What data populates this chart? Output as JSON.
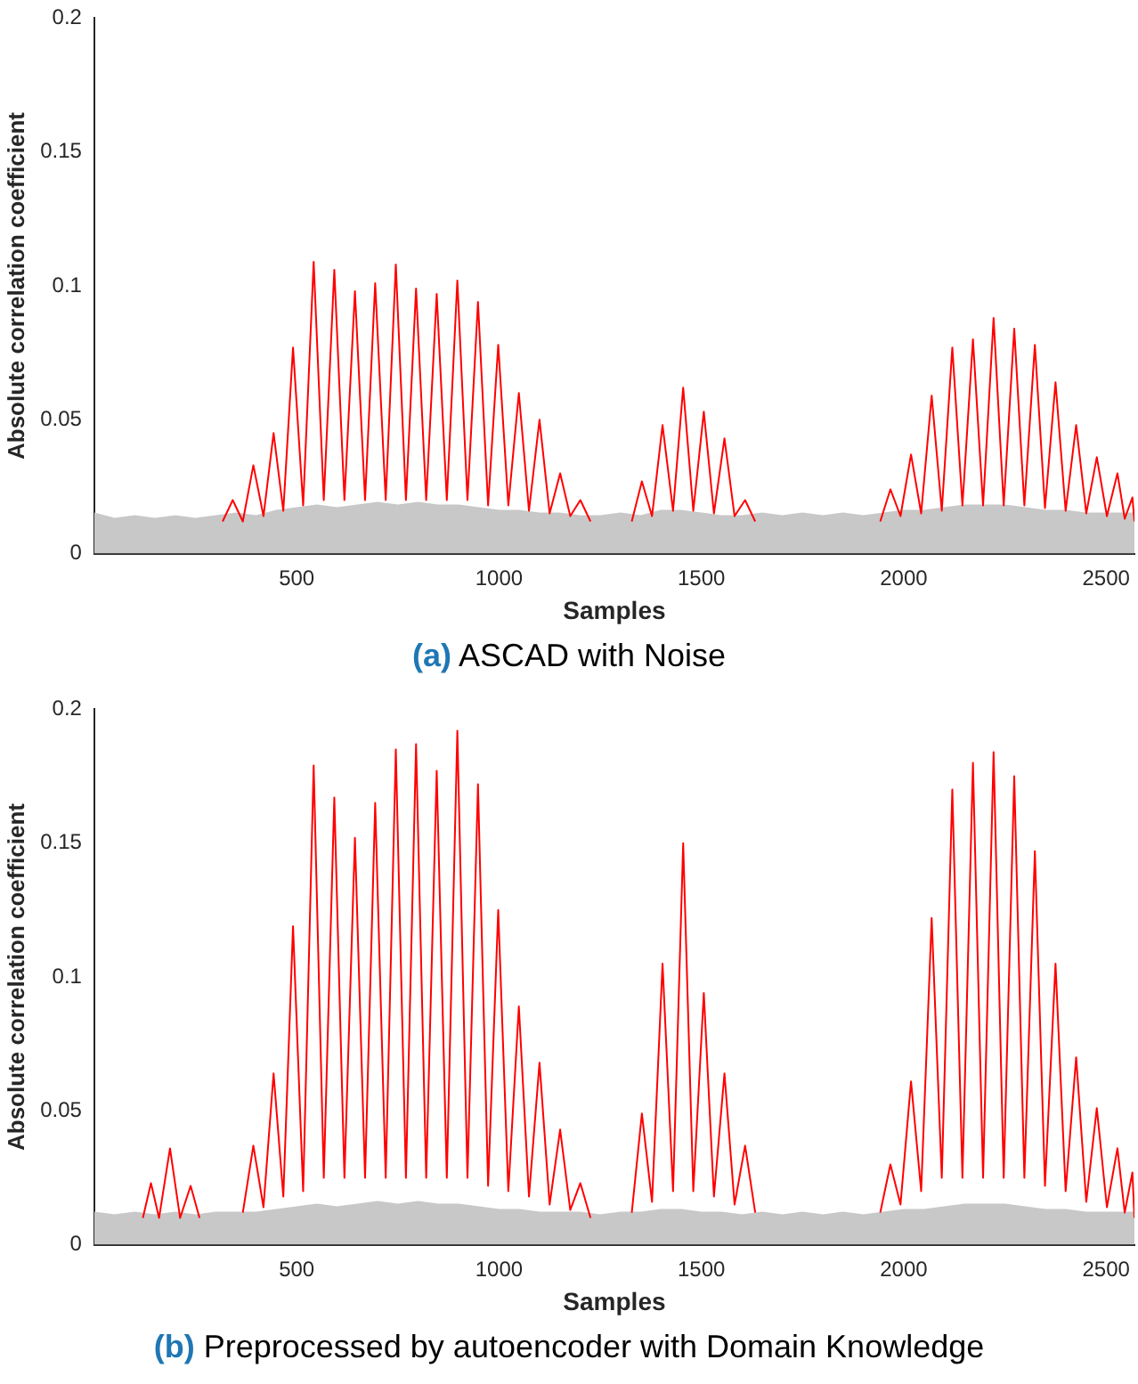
{
  "chart_data": [
    {
      "type": "line",
      "title": "(a) ASCAD with Noise",
      "xlabel": "Samples",
      "ylabel": "Absolute correlation coefficient",
      "xlim": [
        0,
        2570
      ],
      "ylim": [
        0,
        0.2
      ],
      "xticks": [
        500,
        1000,
        1500,
        2000,
        2500
      ],
      "yticks": [
        0,
        0.05,
        0.1,
        0.15,
        0.2
      ],
      "series": [
        {
          "type": "area",
          "color": "#c8c8c8",
          "x": [
            0,
            50,
            100,
            150,
            200,
            250,
            300,
            350,
            400,
            450,
            500,
            550,
            600,
            650,
            700,
            750,
            800,
            850,
            900,
            950,
            1000,
            1050,
            1100,
            1150,
            1200,
            1250,
            1300,
            1350,
            1400,
            1450,
            1500,
            1550,
            1600,
            1650,
            1700,
            1750,
            1800,
            1850,
            1900,
            1950,
            2000,
            2050,
            2100,
            2150,
            2200,
            2250,
            2300,
            2350,
            2400,
            2450,
            2500,
            2570
          ],
          "values": [
            0.015,
            0.013,
            0.014,
            0.013,
            0.014,
            0.013,
            0.014,
            0.015,
            0.014,
            0.016,
            0.017,
            0.018,
            0.017,
            0.018,
            0.019,
            0.018,
            0.019,
            0.018,
            0.018,
            0.017,
            0.016,
            0.016,
            0.015,
            0.015,
            0.014,
            0.014,
            0.015,
            0.014,
            0.016,
            0.016,
            0.015,
            0.014,
            0.014,
            0.015,
            0.014,
            0.015,
            0.014,
            0.015,
            0.014,
            0.015,
            0.016,
            0.016,
            0.017,
            0.018,
            0.018,
            0.018,
            0.017,
            0.016,
            0.016,
            0.015,
            0.015,
            0.015
          ]
        },
        {
          "color": "#ff0000",
          "x": [
            317,
            342,
            367,
            393,
            418,
            443,
            467,
            491,
            516,
            542,
            567,
            593,
            618,
            644,
            669,
            694,
            720,
            745,
            770,
            795,
            820,
            846,
            871,
            897,
            922,
            948,
            973,
            998,
            1023,
            1049,
            1074,
            1100,
            1125,
            1151,
            1176,
            1201,
            1226,
            1290,
            1328,
            1353,
            1378,
            1404,
            1430,
            1455,
            1480,
            1506,
            1531,
            1557,
            1582,
            1608,
            1633,
            1800,
            1942,
            1967,
            1992,
            2018,
            2043,
            2069,
            2094,
            2120,
            2145,
            2171,
            2196,
            2222,
            2247,
            2273,
            2298,
            2324,
            2349,
            2375,
            2400,
            2426,
            2451,
            2477,
            2502,
            2528,
            2546,
            2565,
            2570
          ],
          "values": [
            0.012,
            0.02,
            0.012,
            0.033,
            0.014,
            0.045,
            0.016,
            0.077,
            0.018,
            0.109,
            0.02,
            0.106,
            0.02,
            0.098,
            0.02,
            0.101,
            0.02,
            0.108,
            0.02,
            0.099,
            0.02,
            0.097,
            0.02,
            0.102,
            0.02,
            0.094,
            0.018,
            0.078,
            0.018,
            0.06,
            0.016,
            0.05,
            0.015,
            0.03,
            0.014,
            0.02,
            0.012,
            null,
            0.012,
            0.027,
            0.014,
            0.048,
            0.016,
            0.062,
            0.016,
            0.053,
            0.015,
            0.043,
            0.014,
            0.02,
            0.012,
            null,
            0.012,
            0.024,
            0.014,
            0.037,
            0.015,
            0.059,
            0.016,
            0.077,
            0.018,
            0.08,
            0.018,
            0.088,
            0.018,
            0.084,
            0.018,
            0.078,
            0.017,
            0.064,
            0.016,
            0.048,
            0.015,
            0.036,
            0.014,
            0.03,
            0.013,
            0.021,
            0.012
          ]
        }
      ]
    },
    {
      "type": "line",
      "title": "(b) Preprocessed by autoencoder with Domain Knowledge",
      "xlabel": "Samples",
      "ylabel": "Absolute correlation coefficient",
      "xlim": [
        0,
        2570
      ],
      "ylim": [
        0,
        0.2
      ],
      "xticks": [
        500,
        1000,
        1500,
        2000,
        2500
      ],
      "yticks": [
        0,
        0.05,
        0.1,
        0.15,
        0.2
      ],
      "series": [
        {
          "type": "area",
          "color": "#c8c8c8",
          "x": [
            0,
            50,
            100,
            150,
            200,
            250,
            300,
            350,
            400,
            450,
            500,
            550,
            600,
            650,
            700,
            750,
            800,
            850,
            900,
            950,
            1000,
            1050,
            1100,
            1150,
            1200,
            1250,
            1300,
            1350,
            1400,
            1450,
            1500,
            1550,
            1600,
            1650,
            1700,
            1750,
            1800,
            1850,
            1900,
            1950,
            2000,
            2050,
            2100,
            2150,
            2200,
            2250,
            2300,
            2350,
            2400,
            2450,
            2500,
            2570
          ],
          "values": [
            0.012,
            0.011,
            0.012,
            0.011,
            0.012,
            0.011,
            0.012,
            0.012,
            0.012,
            0.013,
            0.014,
            0.015,
            0.014,
            0.015,
            0.016,
            0.015,
            0.016,
            0.015,
            0.015,
            0.014,
            0.013,
            0.013,
            0.012,
            0.012,
            0.012,
            0.011,
            0.012,
            0.012,
            0.013,
            0.013,
            0.012,
            0.012,
            0.011,
            0.012,
            0.011,
            0.012,
            0.011,
            0.012,
            0.011,
            0.012,
            0.013,
            0.013,
            0.014,
            0.015,
            0.015,
            0.015,
            0.014,
            0.013,
            0.013,
            0.012,
            0.012,
            0.012
          ]
        },
        {
          "color": "#ff0000",
          "x": [
            120,
            140,
            160,
            187,
            212,
            238,
            260,
            340,
            367,
            393,
            418,
            443,
            467,
            491,
            516,
            542,
            567,
            593,
            618,
            644,
            669,
            694,
            720,
            745,
            770,
            795,
            820,
            846,
            871,
            897,
            922,
            948,
            973,
            998,
            1023,
            1049,
            1074,
            1100,
            1125,
            1151,
            1176,
            1201,
            1226,
            1290,
            1328,
            1353,
            1378,
            1404,
            1430,
            1455,
            1480,
            1506,
            1531,
            1557,
            1582,
            1608,
            1633,
            1800,
            1942,
            1967,
            1992,
            2018,
            2043,
            2069,
            2094,
            2120,
            2145,
            2171,
            2196,
            2222,
            2247,
            2273,
            2298,
            2324,
            2349,
            2375,
            2400,
            2426,
            2451,
            2477,
            2502,
            2528,
            2546,
            2565,
            2570
          ],
          "values": [
            0.01,
            0.023,
            0.01,
            0.036,
            0.01,
            0.022,
            0.01,
            null,
            0.012,
            0.037,
            0.014,
            0.064,
            0.018,
            0.119,
            0.02,
            0.179,
            0.025,
            0.167,
            0.025,
            0.152,
            0.025,
            0.165,
            0.025,
            0.185,
            0.025,
            0.187,
            0.025,
            0.177,
            0.025,
            0.192,
            0.025,
            0.172,
            0.022,
            0.125,
            0.02,
            0.089,
            0.018,
            0.068,
            0.015,
            0.043,
            0.013,
            0.023,
            0.01,
            null,
            0.012,
            0.049,
            0.016,
            0.105,
            0.02,
            0.15,
            0.02,
            0.094,
            0.018,
            0.064,
            0.015,
            0.037,
            0.012,
            null,
            0.012,
            0.03,
            0.015,
            0.061,
            0.02,
            0.122,
            0.025,
            0.17,
            0.025,
            0.18,
            0.025,
            0.184,
            0.025,
            0.175,
            0.025,
            0.147,
            0.022,
            0.105,
            0.02,
            0.07,
            0.016,
            0.051,
            0.014,
            0.036,
            0.012,
            0.027,
            0.01
          ]
        }
      ]
    }
  ]
}
